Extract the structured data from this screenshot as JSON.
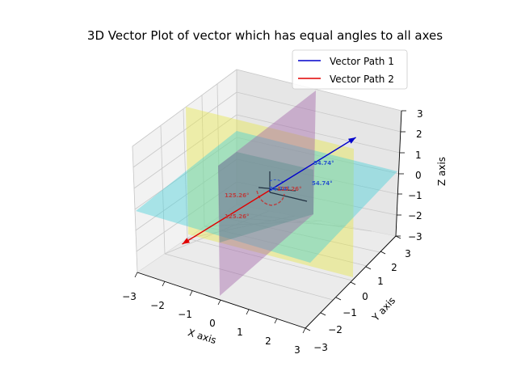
{
  "chart_data": {
    "type": "line",
    "projection": "3d",
    "title": "3D Vector Plot of vector which has equal angles to all axes",
    "xlabel": "X axis",
    "ylabel": "Y axis",
    "zlabel": "Z axis",
    "xlim": [
      -3,
      3
    ],
    "ylim": [
      -3,
      3
    ],
    "zlim": [
      -3,
      3
    ],
    "xticks": [
      "−3",
      "−2",
      "−1",
      "0",
      "1",
      "2",
      "3"
    ],
    "yticks": [
      "−3",
      "−2",
      "−1",
      "0",
      "1",
      "2",
      "3"
    ],
    "zticks": [
      "−3",
      "−2",
      "−1",
      "0",
      "1",
      "2",
      "3"
    ],
    "grid": true,
    "legend_position": "top-right",
    "series": [
      {
        "name": "Vector Path 1",
        "color": "#0000cc",
        "from": [
          0,
          0,
          0
        ],
        "to": [
          3,
          3,
          3
        ]
      },
      {
        "name": "Vector Path 2",
        "color": "#e00000",
        "from": [
          0,
          0,
          0
        ],
        "to": [
          -3,
          -3,
          -3
        ]
      }
    ],
    "planes": [
      {
        "plane": "xy",
        "z": 0,
        "color": "#40d0d8"
      },
      {
        "plane": "yz",
        "x": 0,
        "color": "#e6e650"
      },
      {
        "plane": "xz",
        "y": 0,
        "color": "#a060a8"
      }
    ],
    "annotations": [
      {
        "text": "54.74°",
        "color": "#2a55cc"
      },
      {
        "text": "54.74°",
        "color": "#2a55cc"
      },
      {
        "text": "54.74°",
        "color": "#2a55cc"
      },
      {
        "text": "125.26°",
        "color": "#b84040"
      },
      {
        "text": "125.26°",
        "color": "#b84040"
      },
      {
        "text": "125.26°",
        "color": "#b84040"
      }
    ]
  }
}
